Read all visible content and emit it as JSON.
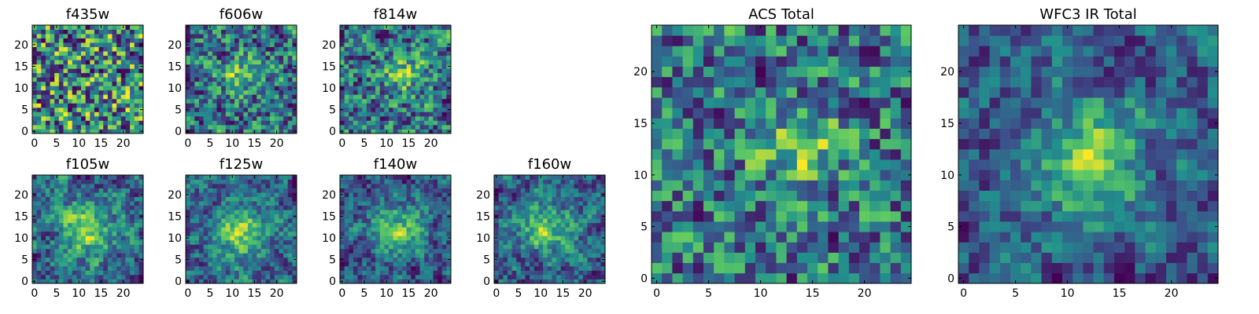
{
  "figure": {
    "colormap": [
      "#440154",
      "#3b528b",
      "#21908d",
      "#5dc963",
      "#fde725"
    ]
  },
  "chart_data": [
    {
      "type": "heatmap",
      "title": "f435w",
      "grid_size": 25,
      "xticks": [
        "0",
        "5",
        "10",
        "15",
        "20"
      ],
      "yticks": [
        "0",
        "5",
        "10",
        "15",
        "20"
      ],
      "xlim": [
        0,
        25
      ],
      "ylim": [
        0,
        25
      ],
      "structure": "noise",
      "center": [
        12,
        12
      ],
      "seed": 11
    },
    {
      "type": "heatmap",
      "title": "f606w",
      "grid_size": 25,
      "xticks": [
        "0",
        "5",
        "10",
        "15",
        "20"
      ],
      "yticks": [
        "0",
        "5",
        "10",
        "15",
        "20"
      ],
      "xlim": [
        0,
        25
      ],
      "ylim": [
        0,
        25
      ],
      "structure": "faint-source",
      "center": [
        12,
        13
      ],
      "seed": 23
    },
    {
      "type": "heatmap",
      "title": "f814w",
      "grid_size": 25,
      "xticks": [
        "0",
        "5",
        "10",
        "15",
        "20"
      ],
      "yticks": [
        "0",
        "5",
        "10",
        "15",
        "20"
      ],
      "xlim": [
        0,
        25
      ],
      "ylim": [
        0,
        25
      ],
      "structure": "faint-source",
      "center": [
        14,
        13
      ],
      "seed": 37
    },
    {
      "type": "heatmap",
      "title": "f105w",
      "grid_size": 25,
      "xticks": [
        "0",
        "5",
        "10",
        "15",
        "20"
      ],
      "yticks": [
        "0",
        "5",
        "10",
        "15",
        "20"
      ],
      "xlim": [
        0,
        25
      ],
      "ylim": [
        0,
        25
      ],
      "structure": "source",
      "center": [
        12,
        12
      ],
      "seed": 41
    },
    {
      "type": "heatmap",
      "title": "f125w",
      "grid_size": 25,
      "xticks": [
        "0",
        "5",
        "10",
        "15",
        "20"
      ],
      "yticks": [
        "0",
        "5",
        "10",
        "15",
        "20"
      ],
      "xlim": [
        0,
        25
      ],
      "ylim": [
        0,
        25
      ],
      "structure": "source",
      "center": [
        12,
        11
      ],
      "seed": 53
    },
    {
      "type": "heatmap",
      "title": "f140w",
      "grid_size": 25,
      "xticks": [
        "0",
        "5",
        "10",
        "15",
        "20"
      ],
      "yticks": [
        "0",
        "5",
        "10",
        "15",
        "20"
      ],
      "xlim": [
        0,
        25
      ],
      "ylim": [
        0,
        25
      ],
      "structure": "source",
      "center": [
        13,
        12
      ],
      "seed": 67
    },
    {
      "type": "heatmap",
      "title": "f160w",
      "grid_size": 25,
      "xticks": [
        "0",
        "5",
        "10",
        "15",
        "20"
      ],
      "yticks": [
        "0",
        "5",
        "10",
        "15",
        "20"
      ],
      "xlim": [
        0,
        25
      ],
      "ylim": [
        0,
        25
      ],
      "structure": "source",
      "center": [
        11,
        12
      ],
      "seed": 79
    },
    {
      "type": "heatmap",
      "title": "ACS Total",
      "grid_size": 25,
      "xticks": [
        "0",
        "5",
        "10",
        "15",
        "20"
      ],
      "yticks": [
        "0",
        "5",
        "10",
        "15",
        "20"
      ],
      "xlim": [
        0,
        25
      ],
      "ylim": [
        0,
        25
      ],
      "structure": "faint-source",
      "center": [
        14,
        13
      ],
      "seed": 97
    },
    {
      "type": "heatmap",
      "title": "WFC3 IR Total",
      "grid_size": 25,
      "xticks": [
        "0",
        "5",
        "10",
        "15",
        "20"
      ],
      "yticks": [
        "0",
        "5",
        "10",
        "15",
        "20"
      ],
      "xlim": [
        0,
        25
      ],
      "ylim": [
        0,
        25
      ],
      "structure": "source",
      "center": [
        12,
        12
      ],
      "seed": 101
    }
  ]
}
